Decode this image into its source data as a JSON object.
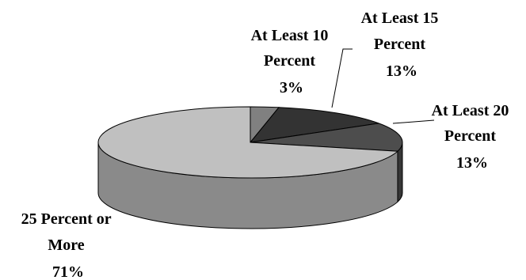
{
  "chart_data": {
    "type": "pie",
    "title": "",
    "three_d": true,
    "slices": [
      {
        "label_lines": [
          "At Least 10",
          "Percent"
        ],
        "value_label": "3%",
        "value": 3,
        "color": "#808080"
      },
      {
        "label_lines": [
          "At Least 15",
          "Percent"
        ],
        "value_label": "13%",
        "value": 13,
        "color": "#333333"
      },
      {
        "label_lines": [
          "At Least 20",
          "Percent"
        ],
        "value_label": "13%",
        "value": 13,
        "color": "#4d4d4d"
      },
      {
        "label_lines": [
          "25 Percent or",
          "More"
        ],
        "value_label": "71%",
        "value": 71,
        "color": "#c0c0c0"
      }
    ]
  }
}
